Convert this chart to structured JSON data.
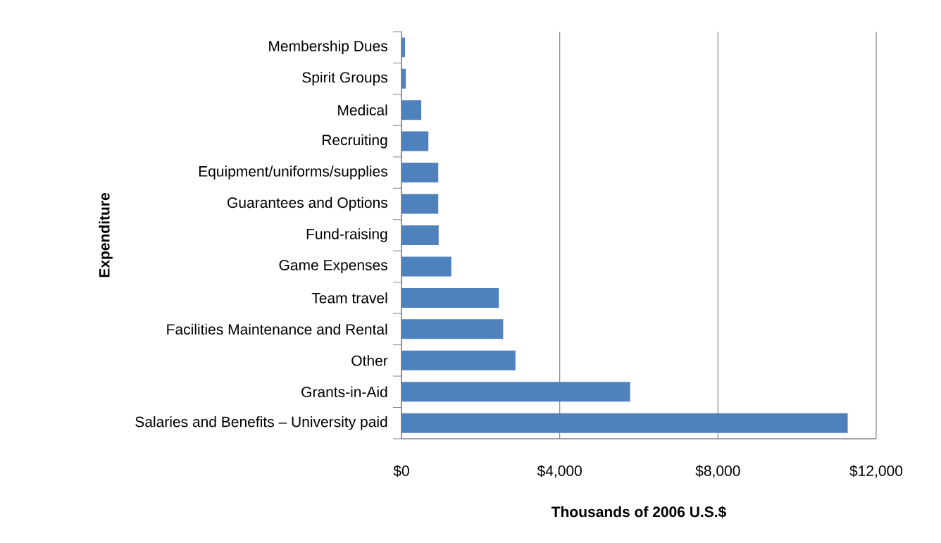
{
  "chart_data": {
    "type": "bar",
    "orientation": "horizontal",
    "categories": [
      "Membership Dues",
      "Spirit Groups",
      "Medical",
      "Recruiting",
      "Equipment/uniforms/supplies",
      "Guarantees and Options",
      "Fund-raising",
      "Game Expenses",
      "Team travel",
      "Facilities Maintenance and Rental",
      "Other",
      "Grants-in-Aid",
      "Salaries and Benefits – University paid"
    ],
    "values": [
      90,
      110,
      500,
      680,
      930,
      930,
      940,
      1260,
      2460,
      2570,
      2880,
      5780,
      11280
    ],
    "color": "#4f81bd",
    "xlabel": "Thousands of 2006 U.S.$",
    "ylabel": "Expenditure",
    "xlim": [
      0,
      12000
    ],
    "xticks": [
      {
        "value": 0,
        "label": "$0"
      },
      {
        "value": 4000,
        "label": "$4,000"
      },
      {
        "value": 8000,
        "label": "$8,000"
      },
      {
        "value": 12000,
        "label": "$12,000"
      }
    ],
    "grid": "x"
  }
}
